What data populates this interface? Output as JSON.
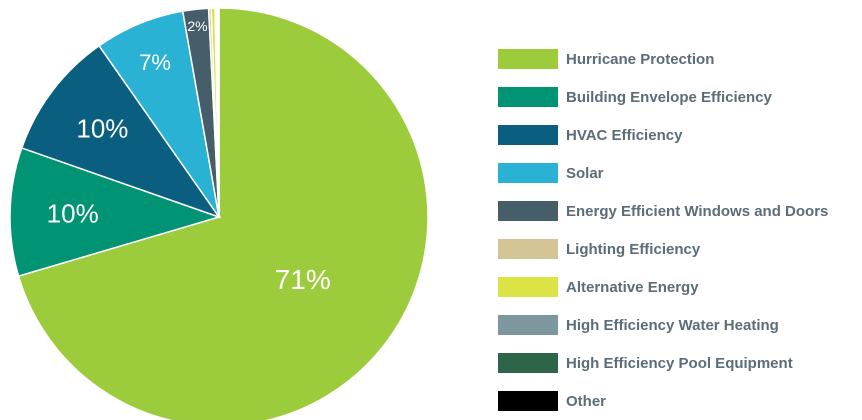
{
  "chart_data": {
    "type": "pie",
    "legend_position": "right",
    "categories": [
      "Hurricane Protection",
      "Building Envelope Efficiency",
      "HVAC Efficiency",
      "Solar",
      "Energy Efficient Windows and Doors",
      "Lighting Efficiency",
      "Alternative Energy",
      "High Efficiency Water Heating",
      "High Efficiency Pool Equipment",
      "Other"
    ],
    "values": [
      71,
      10,
      10,
      7,
      2,
      0.2,
      0.3,
      0.1,
      0.1,
      0.1
    ],
    "slice_labels": [
      "71%",
      "10%",
      "10%",
      "7%",
      "2%",
      "",
      "",
      "",
      "",
      ""
    ],
    "colors": [
      "#9ccb3b",
      "#009474",
      "#0a5e80",
      "#29b2d3",
      "#465e69",
      "#d3c595",
      "#dce345",
      "#7e969e",
      "#2c6548",
      "#000000"
    ]
  }
}
